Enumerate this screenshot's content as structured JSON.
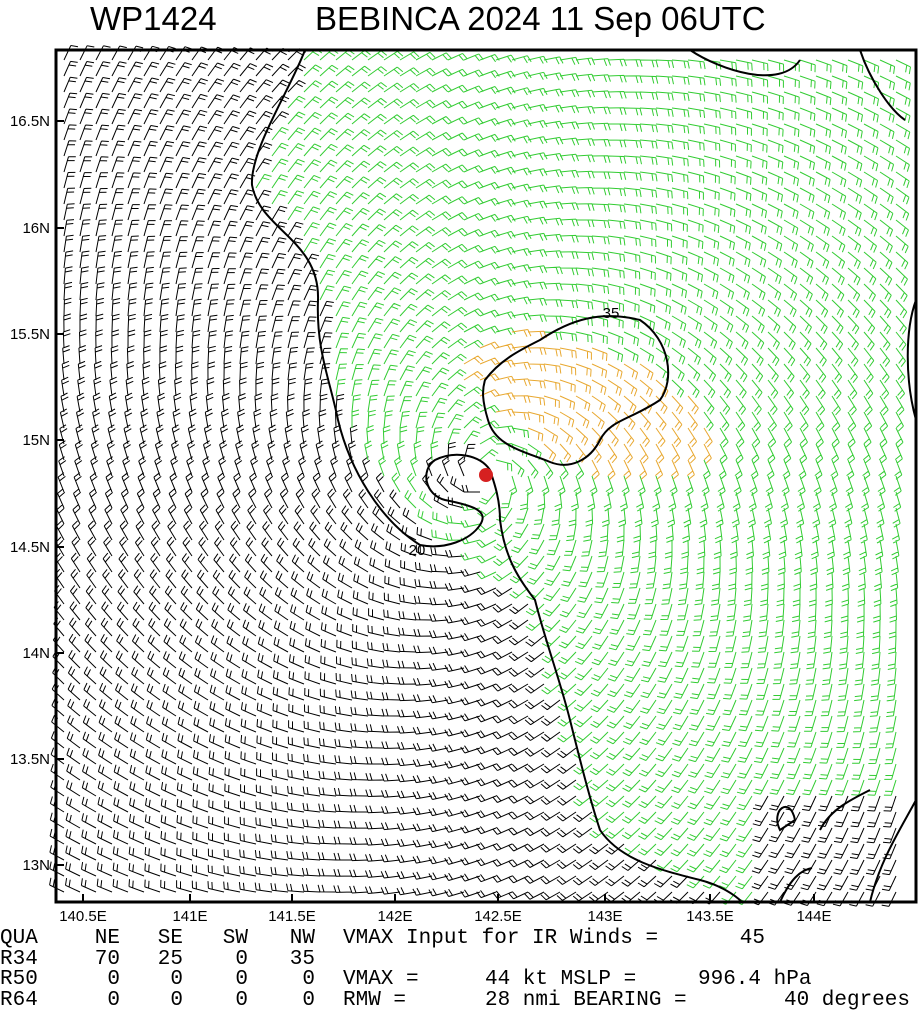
{
  "header": {
    "storm_id": "WP1424",
    "title": "BEBINCA 2024 11 Sep 06UTC"
  },
  "map": {
    "lat_labels": [
      "16.5N",
      "16N",
      "15.5N",
      "15N",
      "14.5N",
      "14N",
      "13.5N",
      "13N"
    ],
    "lon_labels": [
      "140.5E",
      "141E",
      "141.5E",
      "142E",
      "142.5E",
      "143E",
      "143.5E",
      "144E"
    ],
    "contour_labels": [
      "35",
      "20"
    ]
  },
  "table": {
    "columns": [
      "QUA",
      "NE",
      "SE",
      "SW",
      "NW"
    ],
    "rows": [
      [
        "R34",
        70,
        25,
        0,
        35
      ],
      [
        "R50",
        0,
        0,
        0,
        0
      ],
      [
        "R64",
        0,
        0,
        0,
        0
      ]
    ]
  },
  "info": [
    [
      "VMAX Input for IR Winds =",
      45
    ],
    [
      "VMAX =",
      "44 kt MSLP =",
      "996.4 hPa"
    ],
    [
      "RMW =",
      "28 nmi BEARING =",
      "40 degrees"
    ]
  ]
}
